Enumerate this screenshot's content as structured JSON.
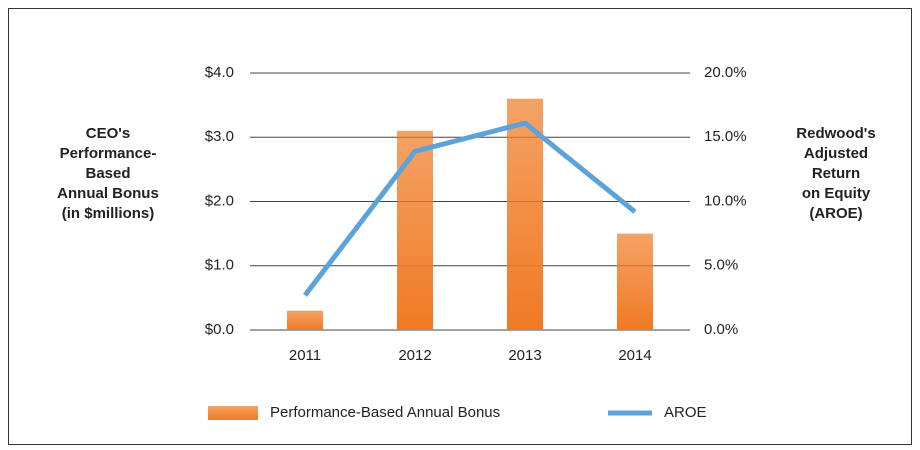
{
  "chart_data": {
    "type": "bar",
    "y_label": [
      "CEO's",
      "Performance-",
      "Based",
      "Annual Bonus",
      "(in $millions)"
    ],
    "y2_label": [
      "Redwood's",
      "Adjusted",
      "Return",
      "on Equity",
      "(AROE)"
    ],
    "categories": [
      "2011",
      "2012",
      "2013",
      "2014"
    ],
    "series": [
      {
        "name": "Performance-Based Annual Bonus",
        "type": "bar",
        "color": "#f07a24",
        "values": [
          0.3,
          3.1,
          3.6,
          1.5
        ]
      },
      {
        "name": "AROE",
        "type": "line",
        "axis": "y2",
        "color": "#5ba3d9",
        "values": [
          2.7,
          13.9,
          16.1,
          9.2
        ]
      }
    ],
    "ylim": [
      0,
      4
    ],
    "yticks": [
      {
        "value": 0,
        "label": "$0.0"
      },
      {
        "value": 1,
        "label": "$1.0"
      },
      {
        "value": 2,
        "label": "$2.0"
      },
      {
        "value": 3,
        "label": "$3.0"
      },
      {
        "value": 4,
        "label": "$4.0"
      }
    ],
    "y2lim": [
      0,
      20
    ],
    "y2ticks": [
      {
        "value": 0,
        "label": "0.0%"
      },
      {
        "value": 5,
        "label": "5.0%"
      },
      {
        "value": 10,
        "label": "10.0%"
      },
      {
        "value": 15,
        "label": "15.0%"
      },
      {
        "value": 20,
        "label": "20.0%"
      }
    ],
    "grid": true,
    "legend": "bottom"
  }
}
